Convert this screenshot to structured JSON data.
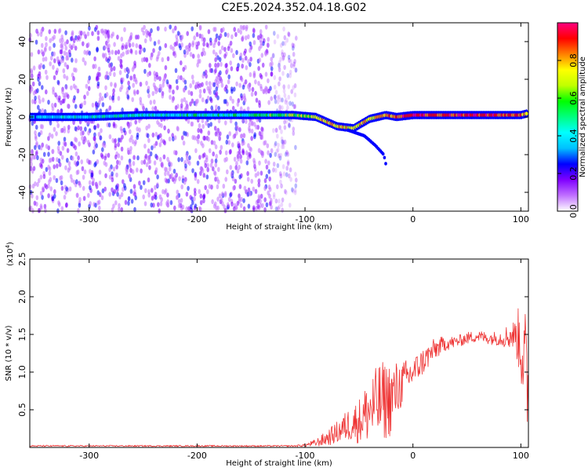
{
  "title": "C2E5.2024.352.04.18.G02",
  "chart_data": [
    {
      "type": "heatmap",
      "xlabel": "Height of straight line (km)",
      "ylabel": "Frequency (Hz)",
      "xlim": [
        -355,
        107
      ],
      "ylim": [
        -50,
        50
      ],
      "xticks": [
        -300,
        -200,
        -100,
        0,
        100
      ],
      "yticks": [
        -40,
        -20,
        0,
        20,
        40
      ],
      "colorbar": {
        "label": "Normalized spectral amplitude",
        "range": [
          0,
          1
        ],
        "ticks": [
          0.0,
          0.2,
          0.4,
          0.6,
          0.8
        ],
        "tick_labels": [
          "0.0",
          "0.2",
          "0.4",
          "0.6",
          "0.8"
        ],
        "colormap": [
          "#ffffff",
          "#c070ff",
          "#8000ff",
          "#0000ff",
          "#00c0ff",
          "#00ffff",
          "#00ff80",
          "#00ff00",
          "#c0ff00",
          "#ffff00",
          "#ff8000",
          "#ff0000",
          "#ff0080"
        ]
      },
      "noise_region": {
        "x": [
          -355,
          -108
        ],
        "freq": [
          -50,
          48
        ]
      },
      "signal_track": {
        "x": [
          -355,
          -300,
          -250,
          -200,
          -150,
          -110,
          -90,
          -70,
          -55,
          -40,
          -25,
          -15,
          0,
          20,
          50,
          80,
          100,
          107
        ],
        "freq": [
          0,
          0,
          1,
          1,
          1,
          1,
          0,
          -5,
          -6,
          -1,
          1,
          0,
          1,
          1,
          1,
          1,
          1,
          2
        ],
        "peak_amplitude": [
          0.35,
          0.4,
          0.45,
          0.45,
          0.5,
          0.6,
          0.75,
          0.8,
          0.7,
          0.75,
          0.8,
          0.85,
          0.95,
          0.9,
          0.92,
          0.92,
          0.9,
          0.8
        ]
      },
      "secondary_branch": {
        "x": [
          -60,
          -45,
          -35,
          -27,
          -24
        ],
        "freq": [
          -7,
          -10,
          -15,
          -20,
          -28
        ]
      }
    },
    {
      "type": "line",
      "xlabel": "Height of straight line (km)",
      "ylabel": "SNR (10 * v/v)",
      "multiplier_label": "(x10",
      "multiplier_exp": "4",
      "multiplier_close": ")",
      "xlim": [
        -355,
        107
      ],
      "ylim": [
        0,
        2.5
      ],
      "xticks": [
        -300,
        -200,
        -100,
        0,
        100
      ],
      "yticks": [
        0.5,
        1.0,
        1.5,
        2.0,
        2.5
      ],
      "color": "#ee3333",
      "series": [
        {
          "x": [
            -355,
            -300,
            -250,
            -200,
            -150,
            -110,
            -100,
            -90,
            -80,
            -70,
            -60,
            -50,
            -40,
            -30,
            -20,
            -10,
            0,
            10,
            20,
            30,
            40,
            50,
            60,
            70,
            80,
            90,
            95,
            100,
            103,
            107
          ],
          "mean": [
            0.02,
            0.02,
            0.02,
            0.02,
            0.02,
            0.02,
            0.03,
            0.06,
            0.12,
            0.2,
            0.3,
            0.35,
            0.5,
            0.6,
            0.65,
            0.85,
            1.0,
            1.15,
            1.3,
            1.38,
            1.4,
            1.45,
            1.48,
            1.45,
            1.45,
            1.48,
            1.5,
            1.4,
            1.2,
            0.6
          ],
          "spread": [
            0.01,
            0.01,
            0.01,
            0.01,
            0.01,
            0.01,
            0.02,
            0.05,
            0.1,
            0.15,
            0.22,
            0.3,
            0.45,
            0.55,
            0.5,
            0.3,
            0.2,
            0.18,
            0.15,
            0.1,
            0.08,
            0.08,
            0.08,
            0.08,
            0.1,
            0.18,
            0.2,
            0.6,
            0.8,
            0.8
          ]
        }
      ]
    }
  ]
}
